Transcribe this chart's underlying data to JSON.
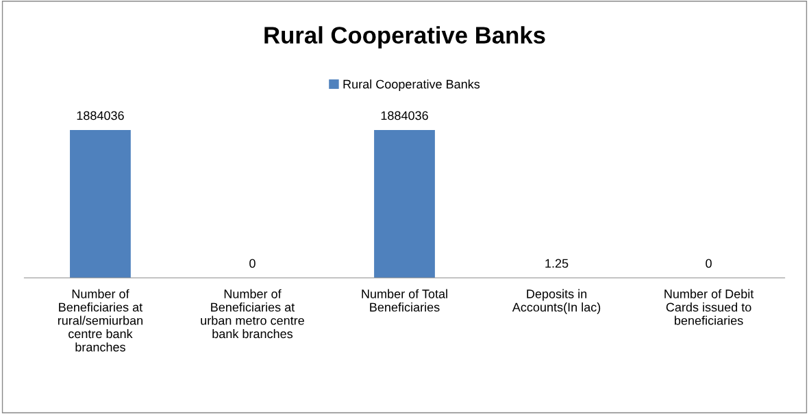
{
  "chart_data": {
    "type": "bar",
    "title": "Rural Cooperative Banks",
    "categories": [
      "Number of\nBeneficiaries at\nrural/semiurban\ncentre bank\nbranches",
      "Number of\nBeneficiaries at\nurban metro centre\nbank branches",
      "Number of Total\nBeneficiaries",
      "Deposits in\nAccounts(In lac)",
      "Number of Debit\nCards issued to\nbeneficiaries"
    ],
    "series": [
      {
        "name": "Rural Cooperative Banks",
        "color": "#4f81bd",
        "values": [
          1884036,
          0,
          1884036,
          1.25,
          0
        ]
      }
    ],
    "data_labels": true,
    "legend": "top",
    "tick_labels": "x"
  }
}
